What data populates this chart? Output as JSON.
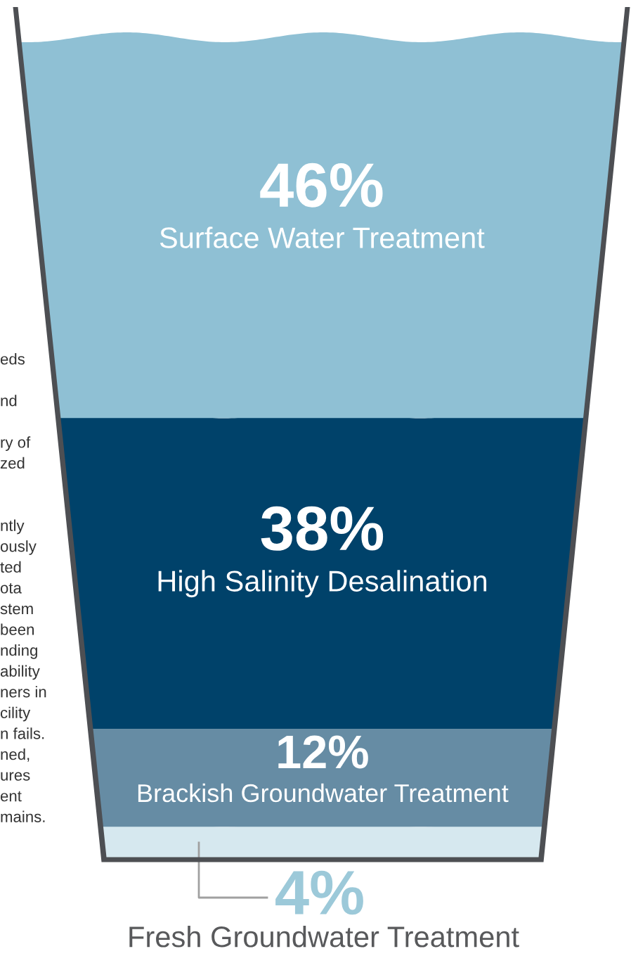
{
  "chart_data": {
    "type": "other",
    "categories": [
      "Surface Water Treatment",
      "High Salinity Desalination",
      "Brackish Groundwater Treatment",
      "Fresh Groundwater Treatment"
    ],
    "values": [
      46,
      38,
      12,
      4
    ],
    "value_labels": [
      "46%",
      "38%",
      "12%",
      "4%"
    ],
    "colors": [
      "#8fc0d4",
      "#00426a",
      "#668ca4",
      "#d6e8ef"
    ],
    "annotations": [
      "eds\n\nnd\n\nry of\nzed\n\n\nntly\nously\nted\nota\nstem\nbeen\nnding\nability\nners in\ncility\nn fails.\nned,\nures\nent\nmains."
    ]
  }
}
